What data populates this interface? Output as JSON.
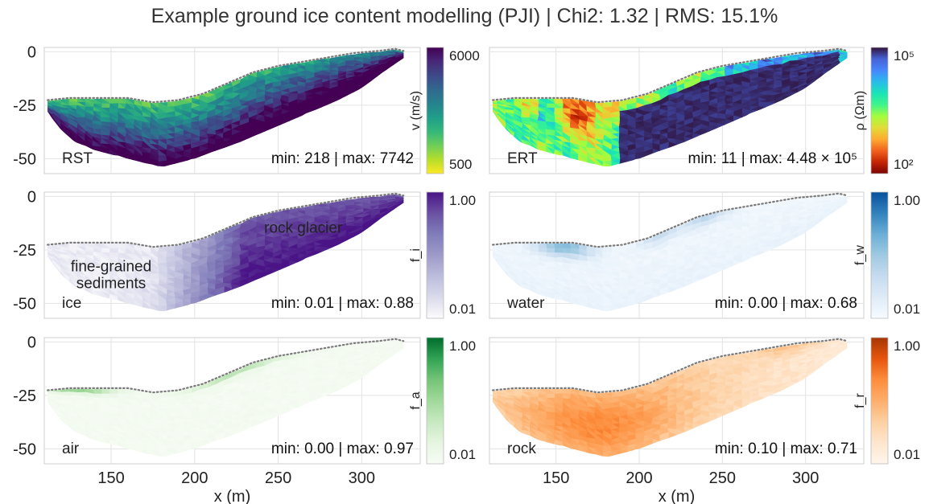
{
  "title": "Example ground ice content modelling (PJI)  | Chi2: 1.32 | RMS: 15.1%",
  "xaxis_label": "x (m)",
  "x_ticks": [
    150,
    200,
    250,
    300
  ],
  "y_ticks": [
    0,
    -25,
    -50
  ],
  "colors": {
    "grid": "#e3e3e3",
    "frame": "#cfcfcf",
    "surface_line": "#7a7a7a"
  },
  "chart_data": [
    {
      "type": "heatmap",
      "panel": "rst",
      "label": "RST",
      "stats": "min: 218 | max: 7742",
      "colorbar": {
        "label": "v (m/s)",
        "top_tick": "6000",
        "bottom_tick": "500",
        "scale": "linear",
        "range": [
          500,
          6000
        ],
        "colormap": "viridis_r"
      },
      "xlim": [
        110,
        335
      ],
      "ylim": [
        -57,
        2
      ]
    },
    {
      "type": "heatmap",
      "panel": "ert",
      "label": "ERT",
      "stats": "min: 11 | max: 4.48 × 10⁵",
      "colorbar": {
        "label": "ρ (Ωm)",
        "top_tick": "10⁵",
        "bottom_tick": "10²",
        "scale": "log",
        "range": [
          100,
          100000
        ],
        "colormap": "turbo_r"
      },
      "xlim": [
        110,
        335
      ],
      "ylim": [
        -57,
        2
      ]
    },
    {
      "type": "heatmap",
      "panel": "ice",
      "label": "ice",
      "stats": "min: 0.01 | max: 0.88",
      "annotations": [
        {
          "text": [
            "fine-grained",
            "sediments"
          ],
          "x": 150,
          "y": -35
        },
        {
          "text": [
            "rock glacier"
          ],
          "x": 265,
          "y": -17
        }
      ],
      "colorbar": {
        "label": "f_i",
        "top_tick": "1.00",
        "bottom_tick": "0.01",
        "scale": "log",
        "range": [
          0.01,
          1.0
        ],
        "colormap": "purples"
      },
      "xlim": [
        110,
        335
      ],
      "ylim": [
        -57,
        2
      ]
    },
    {
      "type": "heatmap",
      "panel": "water",
      "label": "water",
      "stats": "min: 0.00 | max: 0.68",
      "colorbar": {
        "label": "f_w",
        "top_tick": "1.00",
        "bottom_tick": "0.01",
        "scale": "log",
        "range": [
          0.01,
          1.0
        ],
        "colormap": "blues"
      },
      "xlim": [
        110,
        335
      ],
      "ylim": [
        -57,
        2
      ]
    },
    {
      "type": "heatmap",
      "panel": "air",
      "label": "air",
      "stats": "min: 0.00 | max: 0.97",
      "colorbar": {
        "label": "f_a",
        "top_tick": "1.00",
        "bottom_tick": "0.01",
        "scale": "log",
        "range": [
          0.01,
          1.0
        ],
        "colormap": "greens"
      },
      "xlim": [
        110,
        335
      ],
      "ylim": [
        -57,
        2
      ]
    },
    {
      "type": "heatmap",
      "panel": "rock",
      "label": "rock",
      "stats": "min: 0.10 | max: 0.71",
      "colorbar": {
        "label": "f_r",
        "top_tick": "1.00",
        "bottom_tick": "0.01",
        "scale": "log",
        "range": [
          0.01,
          1.0
        ],
        "colormap": "oranges"
      },
      "xlim": [
        110,
        335
      ],
      "ylim": [
        -57,
        2
      ]
    }
  ],
  "profile": {
    "surface": [
      [
        112,
        -23
      ],
      [
        125,
        -22
      ],
      [
        140,
        -22
      ],
      [
        160,
        -22
      ],
      [
        175,
        -24
      ],
      [
        190,
        -23
      ],
      [
        205,
        -20
      ],
      [
        220,
        -15
      ],
      [
        235,
        -10
      ],
      [
        250,
        -7
      ],
      [
        265,
        -5
      ],
      [
        280,
        -3
      ],
      [
        295,
        -1
      ],
      [
        310,
        0
      ],
      [
        320,
        1
      ],
      [
        325,
        0
      ]
    ],
    "bottom": [
      [
        325,
        -3
      ],
      [
        312,
        -10
      ],
      [
        300,
        -17
      ],
      [
        285,
        -23
      ],
      [
        270,
        -28
      ],
      [
        255,
        -33
      ],
      [
        240,
        -38
      ],
      [
        225,
        -43
      ],
      [
        210,
        -47
      ],
      [
        200,
        -50
      ],
      [
        190,
        -52
      ],
      [
        180,
        -54
      ],
      [
        170,
        -52
      ],
      [
        160,
        -50
      ],
      [
        150,
        -48
      ],
      [
        140,
        -46
      ],
      [
        128,
        -42
      ],
      [
        118,
        -35
      ],
      [
        112,
        -28
      ]
    ]
  }
}
